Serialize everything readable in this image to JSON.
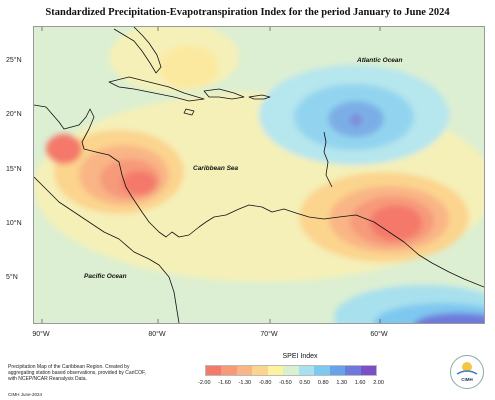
{
  "title": "Standardized Precipitation-Evapotranspiration Index for the period January to June 2024",
  "lat_labels": [
    "25°N",
    "20°N",
    "15°N",
    "10°N",
    "5°N"
  ],
  "lon_labels": [
    "90°W",
    "80°W",
    "70°W",
    "60°W"
  ],
  "ocean_labels": {
    "atlantic": "Atlantic Ocean",
    "caribbean": "Caribbean Sea",
    "pacific": "Pacific Ocean"
  },
  "footer": {
    "description": "Precipitation Map of the Caribbean Region. Created by aggregating station based observations, provided by CariCOF, with NCEP/NCAR Reanalysis Data.",
    "date": "CIMH June-2024"
  },
  "legend": {
    "title": "SPEI Index",
    "ticks": [
      "-2.00",
      "-1.60",
      "-1.30",
      "-0.80",
      "-0.50",
      "0.50",
      "0.80",
      "1.30",
      "1.60",
      "2.00"
    ],
    "colors": [
      "#f4796a",
      "#f69a7a",
      "#f9b586",
      "#fbd48e",
      "#fdf2a0",
      "#d8efd0",
      "#a8e0ee",
      "#7ec8ef",
      "#6aa2e8",
      "#6f78dc",
      "#7a4fc8"
    ]
  },
  "logo": {
    "text": "CIMH"
  }
}
